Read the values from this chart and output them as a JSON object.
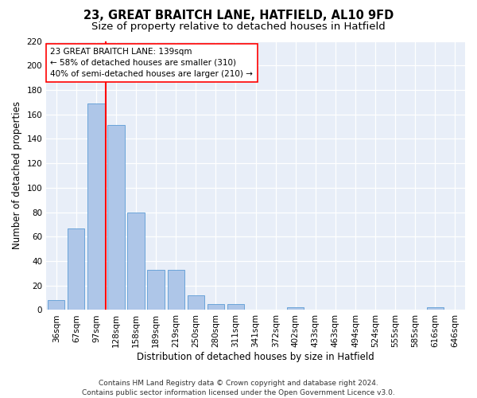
{
  "title1": "23, GREAT BRAITCH LANE, HATFIELD, AL10 9FD",
  "title2": "Size of property relative to detached houses in Hatfield",
  "xlabel": "Distribution of detached houses by size in Hatfield",
  "ylabel": "Number of detached properties",
  "categories": [
    "36sqm",
    "67sqm",
    "97sqm",
    "128sqm",
    "158sqm",
    "189sqm",
    "219sqm",
    "250sqm",
    "280sqm",
    "311sqm",
    "341sqm",
    "372sqm",
    "402sqm",
    "433sqm",
    "463sqm",
    "494sqm",
    "524sqm",
    "555sqm",
    "585sqm",
    "616sqm",
    "646sqm"
  ],
  "values": [
    8,
    67,
    169,
    151,
    80,
    33,
    33,
    12,
    5,
    5,
    0,
    0,
    2,
    0,
    0,
    0,
    0,
    0,
    0,
    2,
    0
  ],
  "bar_color": "#aec6e8",
  "bar_edge_color": "#5b9bd5",
  "ref_line_color": "red",
  "ref_line_x": 2.5,
  "annotation_line1": "23 GREAT BRAITCH LANE: 139sqm",
  "annotation_line2": "← 58% of detached houses are smaller (310)",
  "annotation_line3": "40% of semi-detached houses are larger (210) →",
  "ylim": [
    0,
    220
  ],
  "yticks": [
    0,
    20,
    40,
    60,
    80,
    100,
    120,
    140,
    160,
    180,
    200,
    220
  ],
  "footer": "Contains HM Land Registry data © Crown copyright and database right 2024.\nContains public sector information licensed under the Open Government Licence v3.0.",
  "background_color": "#e8eef8",
  "plot_bg_color": "#e8eef8",
  "title1_fontsize": 10.5,
  "title2_fontsize": 9.5,
  "xlabel_fontsize": 8.5,
  "ylabel_fontsize": 8.5,
  "tick_fontsize": 7.5,
  "footer_fontsize": 6.5,
  "annot_fontsize": 7.5
}
